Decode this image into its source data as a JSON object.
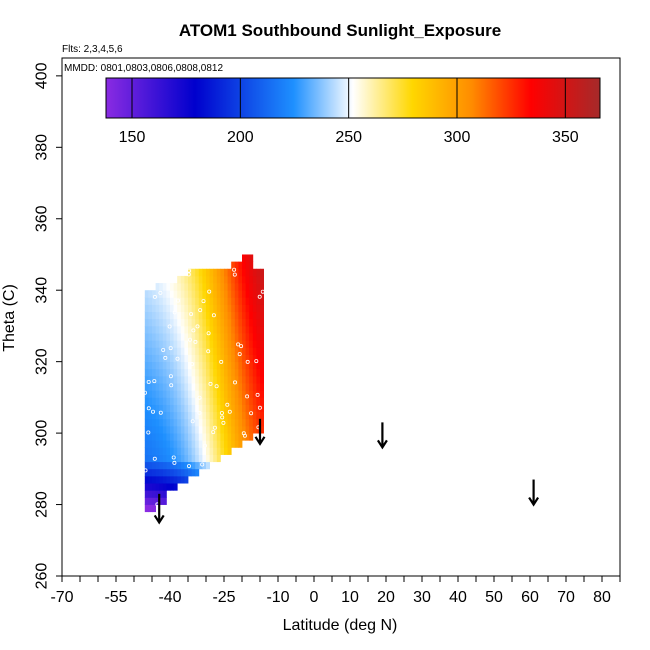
{
  "chart_data": {
    "type": "heatmap",
    "title": "ATOM1 Southbound Sunlight_Exposure",
    "annotations": {
      "flights": "Flts: 2,3,4,5,6",
      "dates": "MMDD: 0801,0803,0806,0808,0812"
    },
    "xlabel": "Latitude (deg N)",
    "ylabel": "Theta (C)",
    "xlim": [
      -70,
      85
    ],
    "ylim": [
      260,
      405
    ],
    "x_ticks": [
      -70,
      -55,
      -40,
      -25,
      -10,
      0,
      10,
      20,
      30,
      40,
      50,
      60,
      70,
      80
    ],
    "y_ticks": [
      260,
      280,
      300,
      320,
      340,
      360,
      380,
      400
    ],
    "colorbar": {
      "range": [
        138,
        366
      ],
      "ticks": [
        150,
        200,
        250,
        300,
        350
      ],
      "colors": [
        "#8a2be2",
        "#0000cd",
        "#1e90ff",
        "#ffffff",
        "#ffd700",
        "#ff8c00",
        "#ff0000",
        "#a52a2a"
      ]
    },
    "grid": false,
    "cell_size": {
      "lat": 1.0,
      "theta": 2.0
    },
    "heatmap_columns": [
      {
        "lat_start": -47,
        "lat_end": -44,
        "theta_lo": 278,
        "theta_hi": 340
      },
      {
        "lat_start": -44,
        "lat_end": -41,
        "theta_lo": 280,
        "theta_hi": 342
      },
      {
        "lat_start": -41,
        "lat_end": -38,
        "theta_lo": 284,
        "theta_hi": 342
      },
      {
        "lat_start": -38,
        "lat_end": -35,
        "theta_lo": 286,
        "theta_hi": 344
      },
      {
        "lat_start": -35,
        "lat_end": -32,
        "theta_lo": 288,
        "theta_hi": 346
      },
      {
        "lat_start": -32,
        "lat_end": -29,
        "theta_lo": 290,
        "theta_hi": 346
      },
      {
        "lat_start": -29,
        "lat_end": -26,
        "theta_lo": 292,
        "theta_hi": 346
      },
      {
        "lat_start": -26,
        "lat_end": -23,
        "theta_lo": 294,
        "theta_hi": 346
      },
      {
        "lat_start": -23,
        "lat_end": -20,
        "theta_lo": 296,
        "theta_hi": 348
      },
      {
        "lat_start": -20,
        "lat_end": -17,
        "theta_lo": 298,
        "theta_hi": 350
      },
      {
        "lat_start": -17,
        "lat_end": -14,
        "theta_lo": 300,
        "theta_hi": 346
      }
    ],
    "heatmap_value_model": {
      "description_free_params": true,
      "lat_center": -25,
      "lat_width": 7,
      "low_value": 215,
      "high_value": 352,
      "theta_gradient": 0.6
    },
    "arrows": [
      {
        "lat": -43,
        "theta_top": 283,
        "theta_bottom": 275
      },
      {
        "lat": -15,
        "theta_top": 304,
        "theta_bottom": 297
      },
      {
        "lat": 19,
        "theta_top": 303,
        "theta_bottom": 296
      },
      {
        "lat": 61,
        "theta_top": 287,
        "theta_bottom": 280
      }
    ]
  }
}
